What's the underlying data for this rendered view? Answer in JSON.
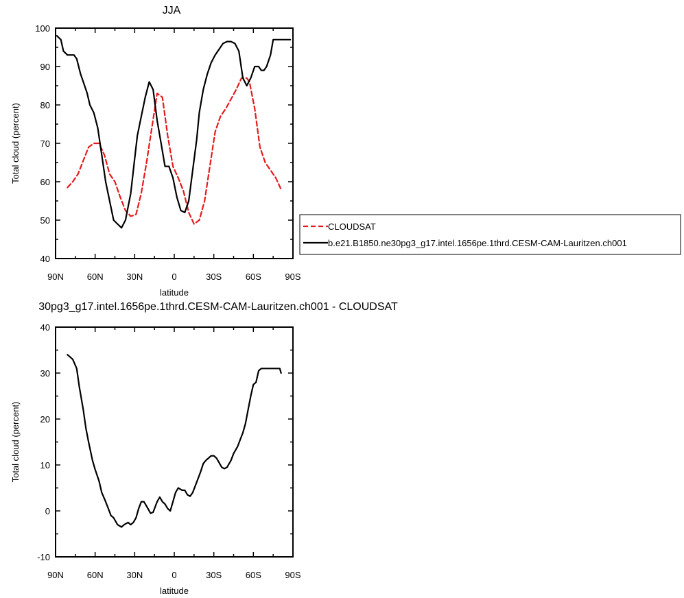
{
  "chart_data": [
    {
      "type": "line",
      "title": "JJA",
      "xlabel": "latitude",
      "ylabel": "Total cloud (percent)",
      "xlim": [
        90,
        -90
      ],
      "ylim": [
        40,
        100
      ],
      "x_ticks": [
        90,
        60,
        30,
        0,
        -30,
        -60,
        -90
      ],
      "x_tick_labels": [
        "90N",
        "60N",
        "30N",
        "0",
        "30S",
        "60S",
        "90S"
      ],
      "y_ticks": [
        40,
        50,
        60,
        70,
        80,
        90,
        100
      ],
      "y_tick_labels": [
        "40",
        "50",
        "60",
        "70",
        "80",
        "90",
        "100"
      ],
      "grid": false,
      "legend_position": "right",
      "series": [
        {
          "name": "CLOUDSAT",
          "color": "#e41a1c",
          "dash": "dashed",
          "x": [
            81,
            77,
            73,
            69,
            65,
            61,
            57,
            53,
            49,
            45,
            41,
            37,
            33,
            29,
            25,
            21,
            17,
            13,
            9,
            5,
            1,
            -3,
            -7,
            -11,
            -15,
            -19,
            -23,
            -27,
            -31,
            -35,
            -39,
            -43,
            -47,
            -51,
            -55,
            -57,
            -61,
            -65,
            -69,
            -73,
            -77,
            -81
          ],
          "y": [
            58.5,
            60,
            62,
            65.5,
            69,
            70,
            70,
            67,
            62,
            60,
            56,
            52.5,
            51,
            51.5,
            57,
            65,
            74,
            83,
            82,
            72,
            64,
            61,
            57.5,
            52,
            49,
            50,
            55,
            64,
            73,
            77,
            79,
            81.5,
            84,
            87,
            87,
            86,
            79,
            69,
            65,
            63,
            61,
            58
          ]
        },
        {
          "name": "b.e21.B1850.ne30pg3_g17.intel.1656pe.1thrd.CESM-CAM-Lauritzen.ch001",
          "color": "#000000",
          "dash": "solid",
          "x": [
            89,
            86,
            84,
            81,
            79,
            76,
            74,
            71,
            69,
            66,
            64,
            61,
            58,
            55,
            52,
            49,
            46,
            43,
            40,
            37,
            33,
            30,
            28,
            25,
            22,
            19,
            16,
            13,
            10,
            7,
            4,
            1,
            -2,
            -5,
            -8,
            -11,
            -14,
            -17,
            -19,
            -22,
            -25,
            -28,
            -31,
            -34,
            -37,
            -40,
            -43,
            -46,
            -49,
            -52,
            -55,
            -58,
            -61,
            -64,
            -66,
            -68,
            -70,
            -73,
            -75,
            -77,
            -80,
            -82,
            -85,
            -88
          ],
          "y": [
            98,
            97,
            94,
            93,
            93,
            93,
            92,
            88,
            86,
            83,
            80,
            78,
            74,
            67,
            60,
            55,
            50,
            49,
            48,
            50,
            57,
            66,
            72,
            77,
            82,
            86,
            84,
            76,
            70,
            64,
            64,
            61,
            56,
            52.5,
            52,
            55,
            63,
            71,
            78,
            84,
            88,
            91,
            93,
            94.5,
            96,
            96.5,
            96.5,
            96,
            94,
            87,
            85,
            87,
            90,
            90,
            89,
            89,
            90,
            93,
            97,
            97,
            97,
            97,
            97,
            97
          ]
        }
      ]
    },
    {
      "type": "line",
      "title": "30pg3_g17.intel.1656pe.1thrd.CESM-CAM-Lauritzen.ch001 - CLOUDSAT",
      "xlabel": "latitude",
      "ylabel": "Total cloud (percent)",
      "xlim": [
        90,
        -90
      ],
      "ylim": [
        -10,
        40
      ],
      "x_ticks": [
        90,
        60,
        30,
        0,
        -30,
        -60,
        -90
      ],
      "x_tick_labels": [
        "90N",
        "60N",
        "30N",
        "0",
        "30S",
        "60S",
        "90S"
      ],
      "y_ticks": [
        -10,
        0,
        10,
        20,
        30,
        40
      ],
      "y_tick_labels": [
        "-10",
        "0",
        "10",
        "20",
        "30",
        "40"
      ],
      "grid": false,
      "series": [
        {
          "color": "#000000",
          "dash": "solid",
          "x": [
            81,
            77,
            74,
            72,
            69,
            67,
            65,
            62,
            60,
            57,
            55,
            52,
            50,
            48,
            46,
            43,
            40,
            38,
            35,
            33,
            31,
            29,
            27,
            25,
            23,
            20,
            18,
            16,
            13,
            11,
            9,
            7,
            5,
            3,
            1,
            -1,
            -3,
            -6,
            -8,
            -10,
            -12,
            -14,
            -16,
            -18,
            -20,
            -22,
            -24,
            -26,
            -28,
            -30,
            -32,
            -34,
            -36,
            -38,
            -40,
            -43,
            -45,
            -48,
            -50,
            -52,
            -54,
            -56,
            -58,
            -60,
            -62,
            -64,
            -66,
            -68,
            -70,
            -72,
            -74,
            -76,
            -78,
            -80,
            -81
          ],
          "y": [
            34,
            33,
            31,
            27,
            22,
            18,
            15,
            11,
            9,
            6.5,
            4,
            2,
            0.5,
            -1,
            -1.5,
            -3,
            -3.5,
            -3,
            -2.5,
            -3,
            -2.5,
            -1.5,
            0.5,
            2,
            2,
            0.5,
            -0.5,
            -0.3,
            2,
            3,
            2,
            1.5,
            0.5,
            0,
            2,
            4,
            5,
            4.5,
            4.5,
            3.5,
            3.2,
            4,
            5.5,
            7,
            8.5,
            10.3,
            11,
            11.5,
            12,
            12,
            11.5,
            10.5,
            9.5,
            9.2,
            9.5,
            11,
            12.5,
            14,
            15.5,
            17,
            19,
            22,
            25,
            27.5,
            28,
            30.5,
            31,
            31,
            31,
            31,
            31,
            31,
            31,
            31,
            30
          ]
        }
      ]
    }
  ]
}
